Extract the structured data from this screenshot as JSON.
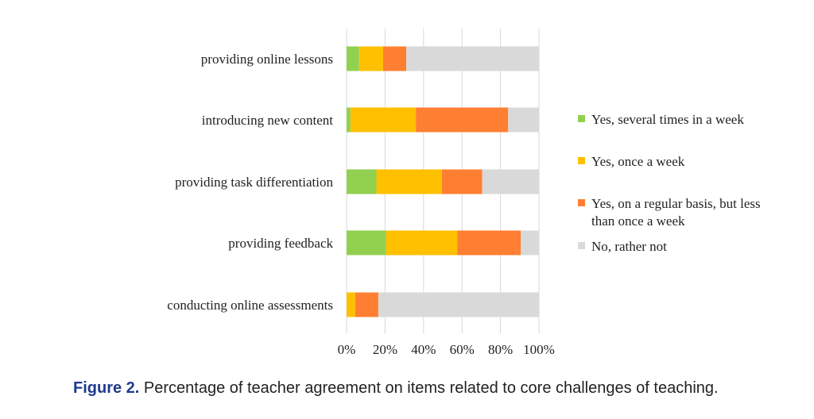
{
  "chart_data": {
    "type": "bar",
    "orientation": "horizontal",
    "stacked": true,
    "categories": [
      "providing online lessons",
      "introducing new content",
      "providing task differentiation",
      "providing feedback",
      "conducting online assessments"
    ],
    "series": [
      {
        "name": "Yes, several times in a week",
        "color": "#92d050",
        "values": [
          6.5,
          2,
          15.5,
          20.5,
          0
        ]
      },
      {
        "name": "Yes, once a week",
        "color": "#ffc000",
        "values": [
          12.5,
          34,
          34,
          37,
          4.5
        ]
      },
      {
        "name": "Yes, on a regular basis, but less than once a week",
        "color": "#ff7f32",
        "values": [
          12,
          48,
          21,
          33,
          12
        ]
      },
      {
        "name": "No, rather not",
        "color": "#d9d9d9",
        "values": [
          69,
          16,
          29.5,
          9.5,
          83.5
        ]
      }
    ],
    "xlim": [
      0,
      100
    ],
    "xticks": [
      "0%",
      "20%",
      "40%",
      "60%",
      "80%",
      "100%"
    ],
    "grid": "vertical",
    "legend_position": "right",
    "legend_lines": [
      [
        "Yes, several times in a week"
      ],
      [
        "Yes, once a week"
      ],
      [
        "Yes, on a regular basis, but less",
        "than once a week"
      ],
      [
        "No, rather not"
      ]
    ]
  },
  "caption": {
    "label": "Figure 2.",
    "text": " Percentage of teacher agreement on items related to core challenges of teaching."
  }
}
